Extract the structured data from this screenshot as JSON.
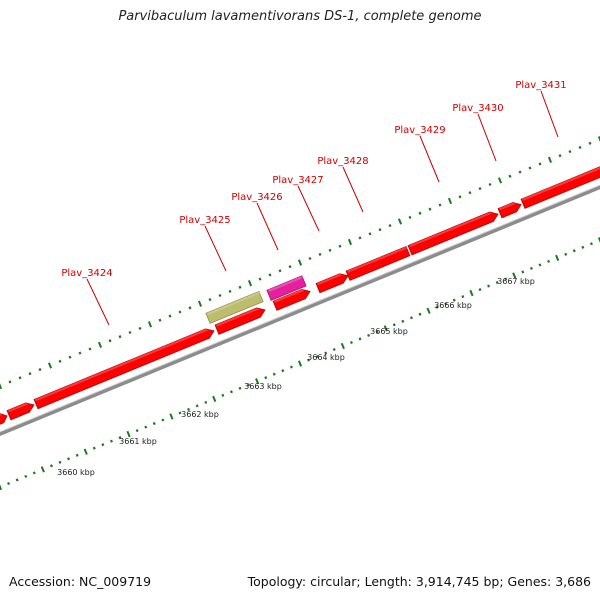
{
  "map": {
    "title": "Parvibaculum lavamentivorans DS-1, complete genome",
    "accession": "Accession: NC_009719",
    "topology": "Topology: circular; Length: 3,914,745 bp; Genes: 3,686"
  },
  "genes": [
    {
      "label": "Plav_3424"
    },
    {
      "label": "Plav_3425"
    },
    {
      "label": "Plav_3426"
    },
    {
      "label": "Plav_3427"
    },
    {
      "label": "Plav_3428"
    },
    {
      "label": "Plav_3429"
    },
    {
      "label": "Plav_3430"
    },
    {
      "label": "Plav_3431"
    }
  ],
  "scale_labels": [
    "3660 kbp",
    "3661 kbp",
    "3662 kbp",
    "3663 kbp",
    "3664 kbp",
    "3665 kbp",
    "3666 kbp",
    "3667 kbp"
  ],
  "colors": {
    "cds": "#ff0000",
    "cds_dark": "#b30000",
    "rrna": "#bdbd6e",
    "trna": "#e61f9e",
    "backbone": "#8c8c8c",
    "tick": "#1a7a1a",
    "gene_label": "#cc0000"
  }
}
